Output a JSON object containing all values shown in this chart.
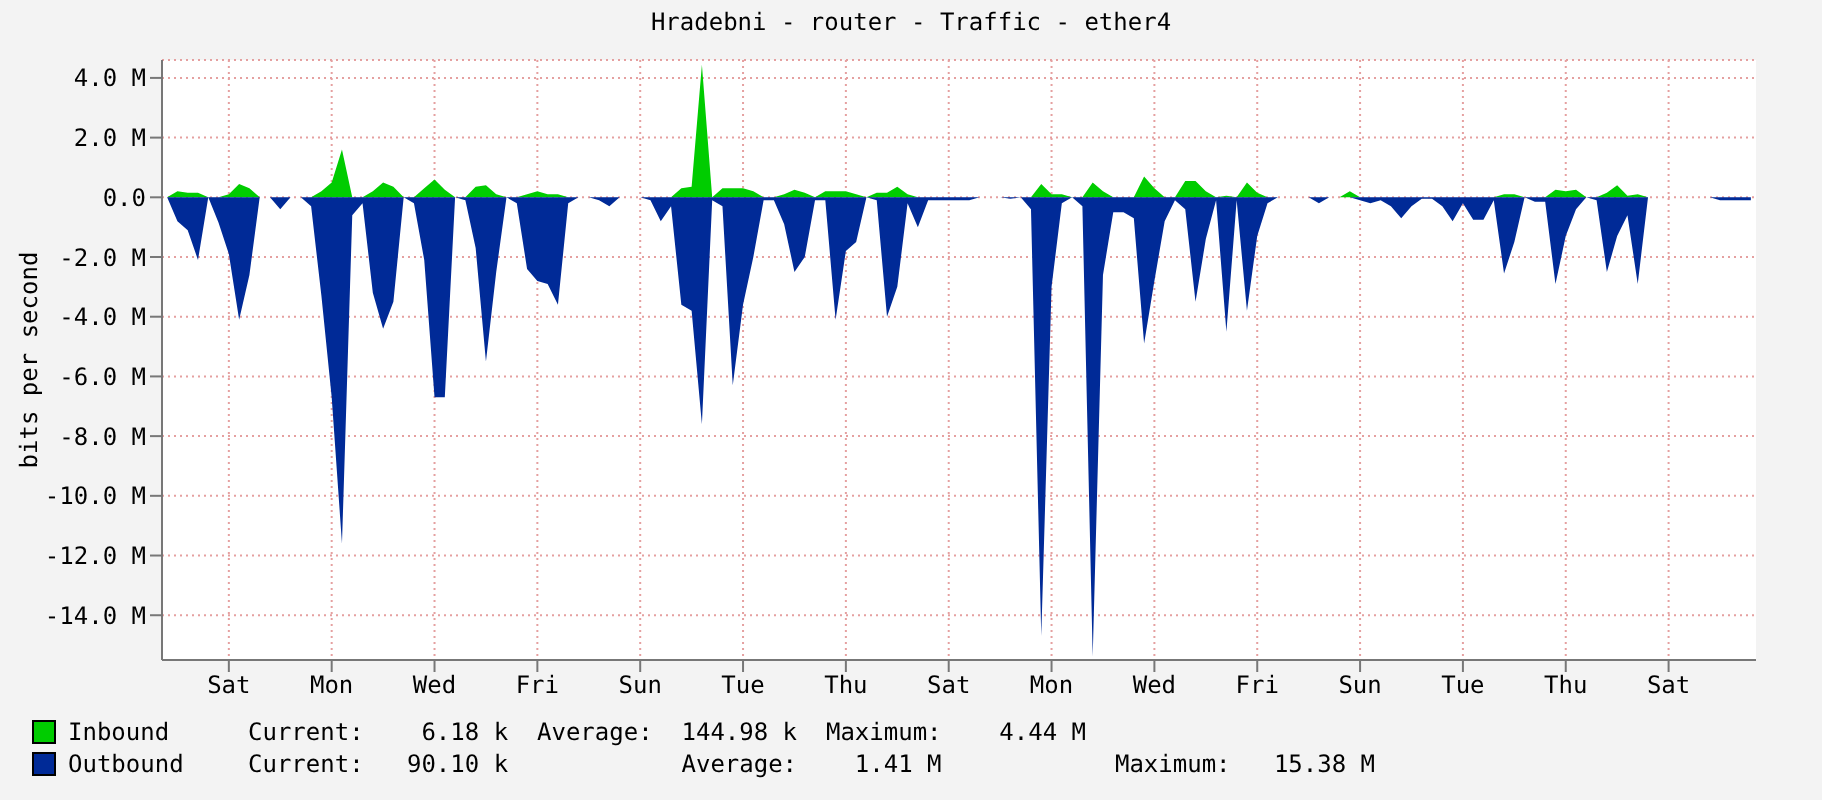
{
  "chart_data": {
    "type": "area",
    "title": "Hradebni - router - Traffic - ether4",
    "ylabel": "bits per second",
    "categories": [
      null,
      null,
      null,
      null,
      null,
      null,
      "Sat",
      null,
      null,
      null,
      null,
      null,
      null,
      null,
      null,
      null,
      "Mon",
      null,
      null,
      null,
      null,
      null,
      null,
      null,
      null,
      null,
      "Wed",
      null,
      null,
      null,
      null,
      null,
      null,
      null,
      null,
      null,
      "Fri",
      null,
      null,
      null,
      null,
      null,
      null,
      null,
      null,
      null,
      "Sun",
      null,
      null,
      null,
      null,
      null,
      null,
      null,
      null,
      null,
      "Tue",
      null,
      null,
      null,
      null,
      null,
      null,
      null,
      null,
      null,
      "Thu",
      null,
      null,
      null,
      null,
      null,
      null,
      null,
      null,
      null,
      "Sat",
      null,
      null,
      null,
      null,
      null,
      null,
      null,
      null,
      null,
      "Mon",
      null,
      null,
      null,
      null,
      null,
      null,
      null,
      null,
      null,
      "Wed",
      null,
      null,
      null,
      null,
      null,
      null,
      null,
      null,
      null,
      "Fri",
      null,
      null,
      null,
      null,
      null,
      null,
      null,
      null,
      null,
      "Sun",
      null,
      null,
      null,
      null,
      null,
      null,
      null,
      null,
      null,
      "Tue",
      null,
      null,
      null,
      null,
      null,
      null,
      null,
      null,
      null,
      "Thu",
      null,
      null,
      null,
      null,
      null,
      null,
      null,
      null,
      null,
      "Sat",
      null,
      null,
      null,
      null,
      null,
      null,
      null,
      null
    ],
    "series": [
      {
        "name": "Inbound",
        "color": "#00cc00",
        "values": [
          0,
          0.2,
          0.15,
          0.15,
          0,
          0,
          0.1,
          0.45,
          0.3,
          0,
          0,
          0,
          0,
          0,
          0,
          0.2,
          0.5,
          1.6,
          0,
          0,
          0.2,
          0.5,
          0.35,
          0,
          0,
          0.3,
          0.6,
          0.25,
          0,
          0,
          0.35,
          0.4,
          0.1,
          0,
          0,
          0.1,
          0.2,
          0.1,
          0.1,
          0,
          0,
          0,
          0,
          0,
          0,
          0,
          0,
          0,
          0,
          0,
          0.3,
          0.35,
          4.44,
          0,
          0.3,
          0.3,
          0.3,
          0.2,
          0,
          0,
          0.1,
          0.25,
          0.15,
          0,
          0.2,
          0.2,
          0.2,
          0.1,
          0,
          0.15,
          0.15,
          0.35,
          0.1,
          0,
          0,
          0,
          0,
          0,
          0,
          0,
          0,
          0,
          0,
          0,
          0,
          0.45,
          0.1,
          0.1,
          0,
          0,
          0.5,
          0.2,
          0,
          0,
          0,
          0.7,
          0.3,
          0,
          0,
          0.55,
          0.55,
          0.2,
          0,
          0.05,
          0,
          0.5,
          0.15,
          0,
          0,
          0,
          0,
          0,
          0,
          0,
          0,
          0.2,
          0,
          0,
          0,
          0,
          0,
          0,
          0,
          0,
          0,
          0,
          0,
          0,
          0,
          0,
          0.1,
          0.1,
          0,
          0,
          0,
          0.25,
          0.2,
          0.25,
          0,
          0,
          0.15,
          0.4,
          0.05,
          0.1,
          0,
          0,
          0,
          0,
          0,
          0,
          0,
          0,
          0,
          0,
          0
        ]
      },
      {
        "name": "Outbound",
        "color": "#002a97",
        "values": [
          0,
          -0.8,
          -1.1,
          -2.1,
          0,
          -0.85,
          -1.9,
          -4.1,
          -2.6,
          0,
          0,
          -0.4,
          0,
          0,
          -0.3,
          -3.3,
          -6.7,
          -11.6,
          -0.6,
          -0.2,
          -3.2,
          -4.4,
          -3.5,
          0,
          -0.2,
          -2.1,
          -6.7,
          -6.7,
          0,
          -0.1,
          -1.7,
          -5.5,
          -2.5,
          0,
          -0.2,
          -2.4,
          -2.8,
          -2.9,
          -3.6,
          -0.2,
          0,
          0,
          -0.1,
          -0.3,
          0,
          0,
          0,
          -0.1,
          -0.8,
          -0.3,
          -3.6,
          -3.8,
          -7.6,
          -0.1,
          -0.3,
          -6.3,
          -3.6,
          -2.0,
          -0.1,
          -0.1,
          -0.9,
          -2.5,
          -2.0,
          -0.1,
          -0.1,
          -4.1,
          -1.8,
          -1.5,
          0,
          -0.1,
          -4.0,
          -3.0,
          -0.2,
          -1.0,
          -0.1,
          -0.1,
          -0.1,
          -0.1,
          -0.1,
          0,
          0,
          0,
          -0.05,
          0,
          -0.4,
          -14.7,
          -3.0,
          -0.2,
          0,
          -0.3,
          -15.38,
          -2.6,
          -0.5,
          -0.5,
          -0.7,
          -4.9,
          -2.8,
          -0.8,
          -0.1,
          -0.4,
          -3.5,
          -1.4,
          -0.1,
          -4.5,
          -0.1,
          -3.8,
          -1.3,
          -0.2,
          0,
          0,
          0,
          0,
          -0.2,
          0,
          0,
          0,
          -0.1,
          -0.2,
          -0.1,
          -0.3,
          -0.7,
          -0.3,
          -0.05,
          -0.05,
          -0.3,
          -0.8,
          -0.2,
          -0.75,
          -0.75,
          -0.1,
          -2.55,
          -1.5,
          0,
          -0.15,
          -0.15,
          -2.9,
          -1.3,
          -0.4,
          0,
          -0.1,
          -2.5,
          -1.3,
          -0.6,
          -2.9,
          0,
          0,
          0,
          0,
          0,
          0,
          0,
          -0.1,
          -0.1,
          -0.1,
          -0.1
        ]
      }
    ],
    "ylim": [
      -15.5,
      4.6
    ],
    "yticks": [
      {
        "value": 4,
        "label": "4.0 M"
      },
      {
        "value": 2,
        "label": "2.0 M"
      },
      {
        "value": 0,
        "label": "0.0"
      },
      {
        "value": -2,
        "label": "-2.0 M"
      },
      {
        "value": -4,
        "label": "-4.0 M"
      },
      {
        "value": -6,
        "label": "-6.0 M"
      },
      {
        "value": -8,
        "label": "-8.0 M"
      },
      {
        "value": -10,
        "label": "-10.0 M"
      },
      {
        "value": -12,
        "label": "-12.0 M"
      },
      {
        "value": -14,
        "label": "-14.0 M"
      }
    ],
    "grid": true,
    "legend": "bottom",
    "annotations": [
      "Current:    6.18 k  Average:  144.98 k  Maximum:    4.44 M",
      "Current:   90.10 k            Average:    1.41 M            Maximum:   15.38 M"
    ]
  }
}
